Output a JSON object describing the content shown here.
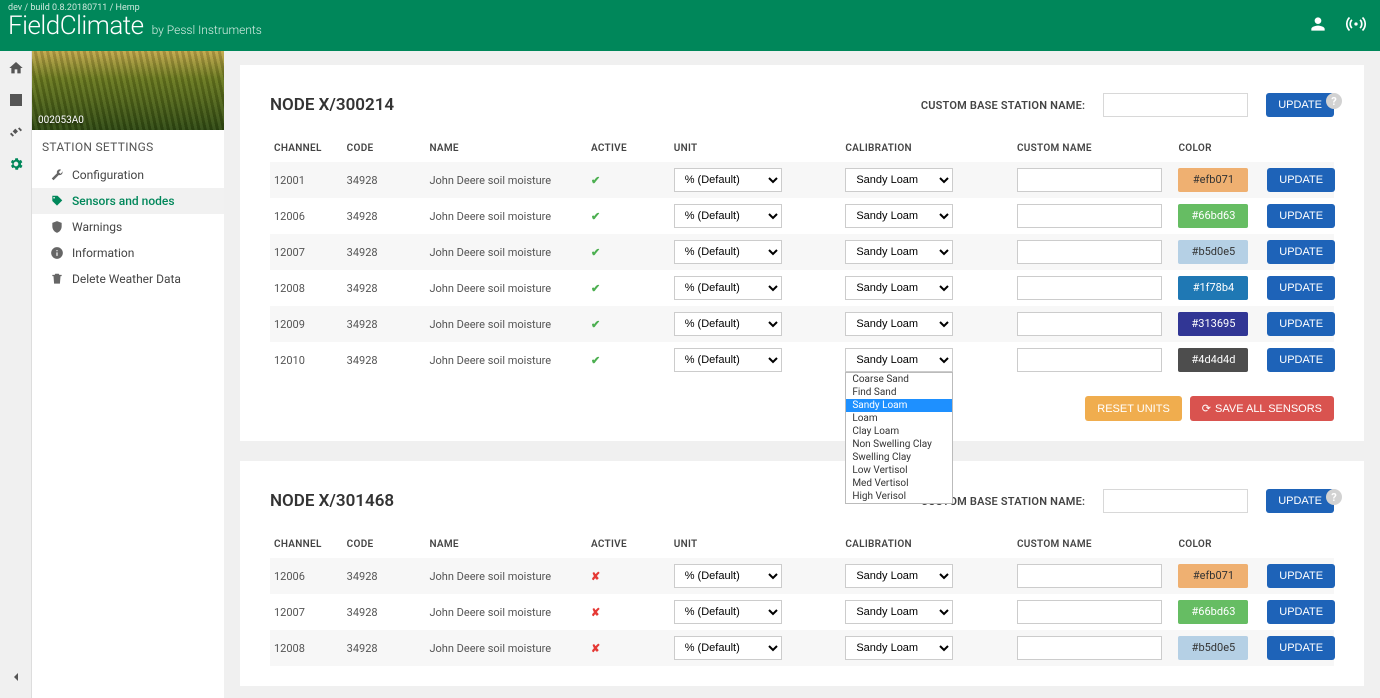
{
  "header": {
    "build_string": "dev / build 0.8.20180711 / Hemp",
    "logo_main": "FieldClimate",
    "logo_sub": "by Pessl Instruments"
  },
  "sidebar": {
    "image_label": "002053A0",
    "heading": "STATION SETTINGS",
    "items": [
      {
        "label": "Configuration",
        "icon": "wrench"
      },
      {
        "label": "Sensors and nodes",
        "icon": "tag",
        "active": true
      },
      {
        "label": "Warnings",
        "icon": "shield"
      },
      {
        "label": "Information",
        "icon": "info"
      },
      {
        "label": "Delete Weather Data",
        "icon": "trash"
      }
    ]
  },
  "table_headers": {
    "channel": "CHANNEL",
    "code": "CODE",
    "name": "NAME",
    "active": "ACTIVE",
    "unit": "UNIT",
    "calibration": "CALIBRATION",
    "custom_name": "CUSTOM NAME",
    "color": "COLOR"
  },
  "labels": {
    "custom_base_station": "CUSTOM BASE STATION NAME:",
    "update_btn": "UPDATE",
    "reset_units_btn": "RESET UNITS",
    "save_all_btn": "SAVE ALL SENSORS",
    "help_char": "?"
  },
  "unit_default": "% (Default)",
  "calib_default": "Sandy Loam",
  "calib_options": [
    "Coarse Sand",
    "Find Sand",
    "Sandy Loam",
    "Loam",
    "Clay Loam",
    "Non Swelling Clay",
    "Swelling Clay",
    "Low Vertisol",
    "Med Vertisol",
    "High Verisol"
  ],
  "nodes": [
    {
      "title": "NODE X/300214",
      "rows": [
        {
          "channel": "12001",
          "code": "34928",
          "name": "John Deere soil moisture",
          "active": true,
          "color": "#efb071",
          "color_text": "#333"
        },
        {
          "channel": "12006",
          "code": "34928",
          "name": "John Deere soil moisture",
          "active": true,
          "color": "#66bd63",
          "color_text": "#fff"
        },
        {
          "channel": "12007",
          "code": "34928",
          "name": "John Deere soil moisture",
          "active": true,
          "color": "#b5d0e5",
          "color_text": "#333"
        },
        {
          "channel": "12008",
          "code": "34928",
          "name": "John Deere soil moisture",
          "active": true,
          "color": "#1f78b4",
          "color_text": "#fff"
        },
        {
          "channel": "12009",
          "code": "34928",
          "name": "John Deere soil moisture",
          "active": true,
          "color": "#313695",
          "color_text": "#fff"
        },
        {
          "channel": "12010",
          "code": "34928",
          "name": "John Deere soil moisture",
          "active": true,
          "color": "#4d4d4d",
          "color_text": "#fff",
          "dropdown_open": true
        }
      ],
      "show_footer": true
    },
    {
      "title": "NODE X/301468",
      "rows": [
        {
          "channel": "12006",
          "code": "34928",
          "name": "John Deere soil moisture",
          "active": false,
          "color": "#efb071",
          "color_text": "#333"
        },
        {
          "channel": "12007",
          "code": "34928",
          "name": "John Deere soil moisture",
          "active": false,
          "color": "#66bd63",
          "color_text": "#fff"
        },
        {
          "channel": "12008",
          "code": "34928",
          "name": "John Deere soil moisture",
          "active": false,
          "color": "#b5d0e5",
          "color_text": "#333"
        }
      ],
      "show_footer": false
    }
  ],
  "colors": {
    "brand_green": "#00875a",
    "btn_primary": "#1e63b8",
    "btn_warning": "#f0ad4e",
    "btn_danger": "#d9534f"
  }
}
